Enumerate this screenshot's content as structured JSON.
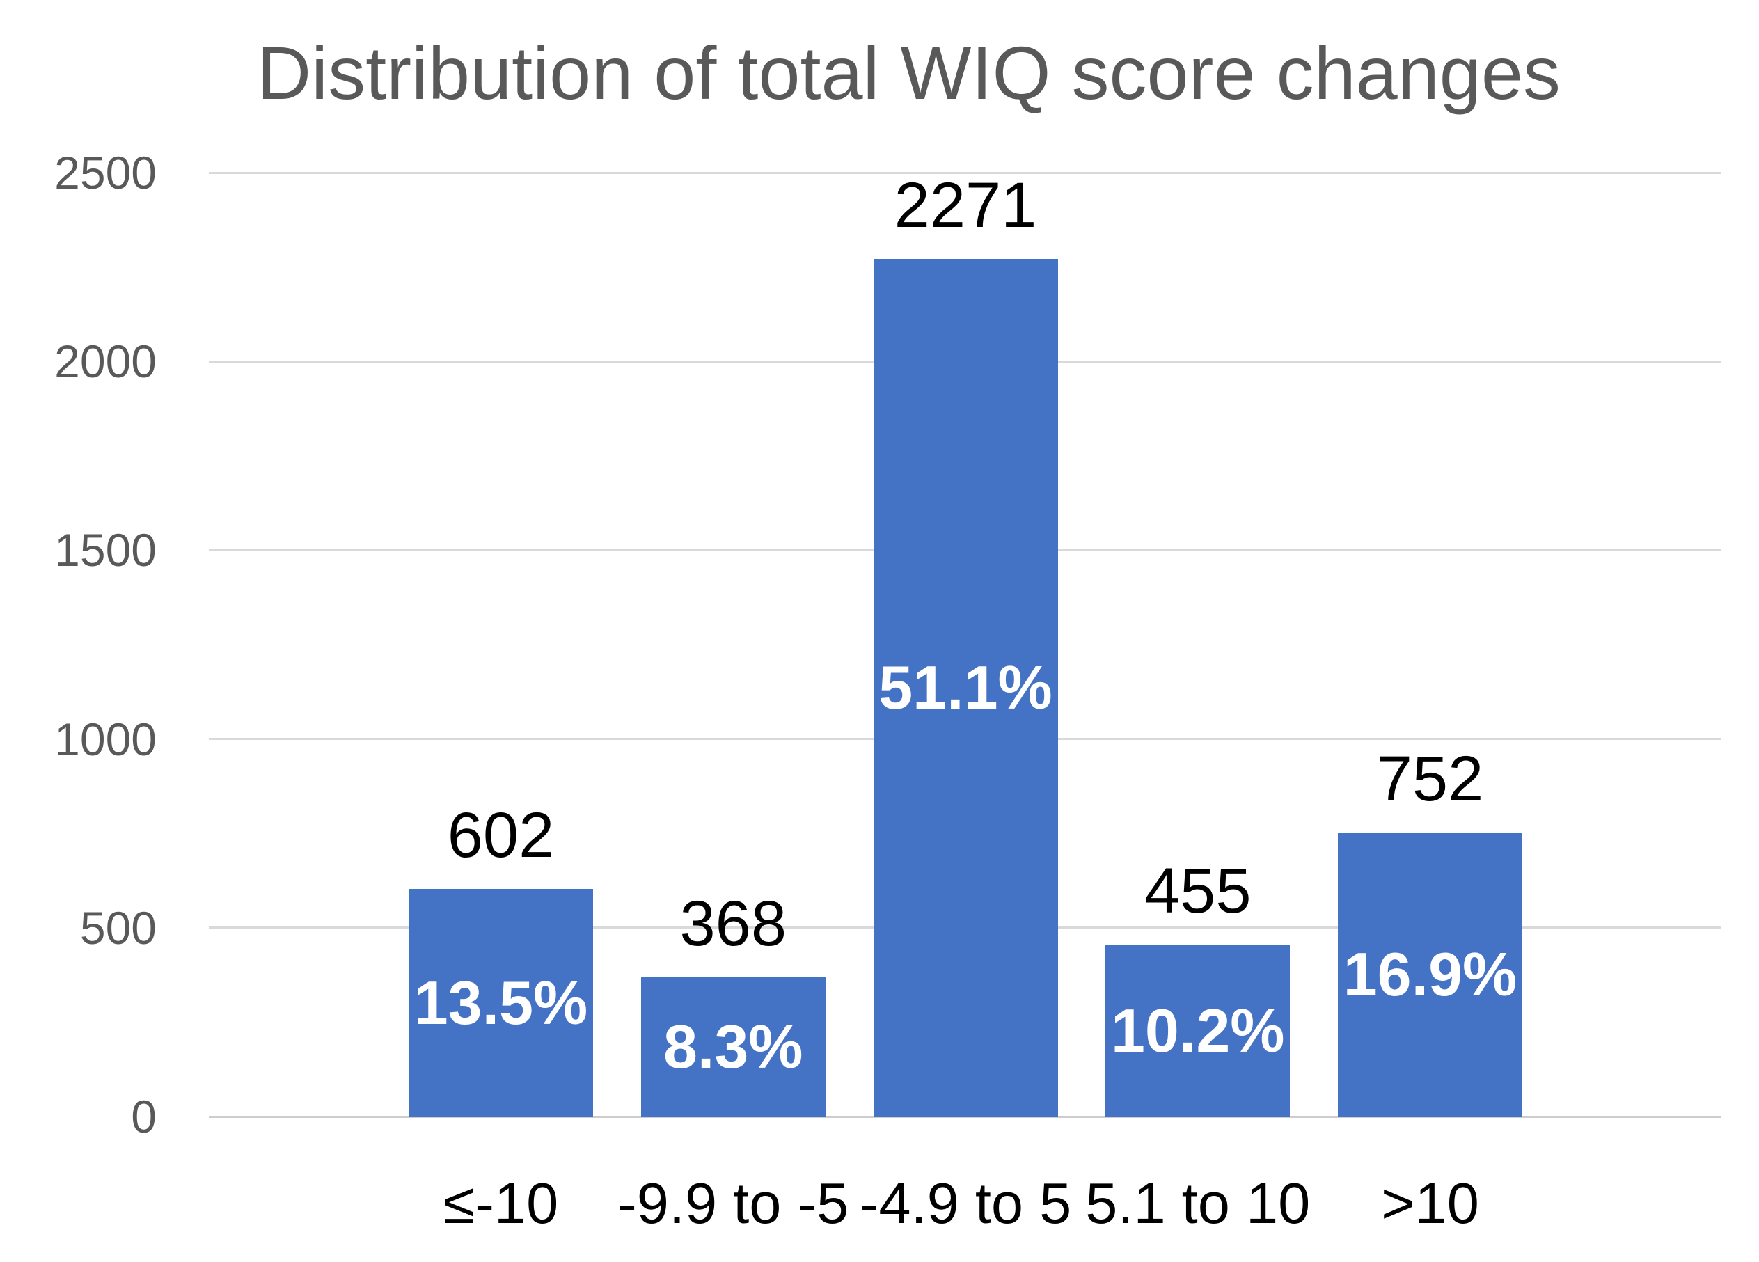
{
  "chart_data": {
    "type": "bar",
    "title": "Distribution of total WIQ score changes",
    "categories": [
      "≤-10",
      "-9.9 to -5",
      "-4.9 to 5",
      "5.1 to 10",
      ">10"
    ],
    "values": [
      602,
      368,
      2271,
      455,
      752
    ],
    "bar_percent_labels": [
      "13.5%",
      "8.3%",
      "51.1%",
      "10.2%",
      "16.9%"
    ],
    "yticks": [
      0,
      500,
      1000,
      1500,
      2000,
      2500
    ],
    "ylim": [
      0,
      2500
    ],
    "xlabel": "",
    "ylabel": "",
    "grid": true,
    "legend": false,
    "colors": {
      "bar": "#4472C4",
      "title": "#595959",
      "ytick_label": "#595959",
      "xtick_label": "#000000",
      "value_label": "#000000",
      "percent_label": "#FFFFFF",
      "gridline": "#D9D9D9",
      "zero_line": "#CDCDCD",
      "background": "#FFFFFF"
    }
  }
}
